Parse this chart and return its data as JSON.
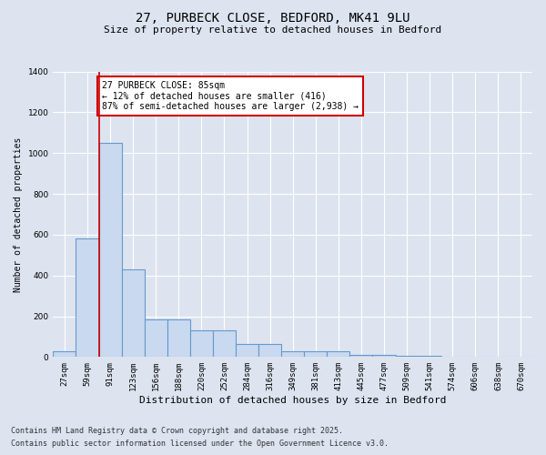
{
  "title_line1": "27, PURBECK CLOSE, BEDFORD, MK41 9LU",
  "title_line2": "Size of property relative to detached houses in Bedford",
  "xlabel": "Distribution of detached houses by size in Bedford",
  "ylabel": "Number of detached properties",
  "categories": [
    "27sqm",
    "59sqm",
    "91sqm",
    "123sqm",
    "156sqm",
    "188sqm",
    "220sqm",
    "252sqm",
    "284sqm",
    "316sqm",
    "349sqm",
    "381sqm",
    "413sqm",
    "445sqm",
    "477sqm",
    "509sqm",
    "541sqm",
    "574sqm",
    "606sqm",
    "638sqm",
    "670sqm"
  ],
  "values": [
    30,
    580,
    1050,
    430,
    185,
    185,
    130,
    130,
    65,
    65,
    30,
    30,
    30,
    10,
    10,
    5,
    5,
    2,
    0,
    0,
    2
  ],
  "bar_color": "#c9d9ef",
  "bar_edge_color": "#6699cc",
  "vline_x": 1.5,
  "vline_color": "#cc0000",
  "ylim": [
    0,
    1400
  ],
  "yticks": [
    0,
    200,
    400,
    600,
    800,
    1000,
    1200,
    1400
  ],
  "annotation_text": "27 PURBECK CLOSE: 85sqm\n← 12% of detached houses are smaller (416)\n87% of semi-detached houses are larger (2,938) →",
  "annotation_box_color": "#ffffff",
  "annotation_box_edge": "#cc0000",
  "footer_line1": "Contains HM Land Registry data © Crown copyright and database right 2025.",
  "footer_line2": "Contains public sector information licensed under the Open Government Licence v3.0.",
  "bg_color": "#dde4f0",
  "plot_bg_color": "#dde4f0",
  "grid_color": "#ffffff",
  "title_fontsize": 10,
  "subtitle_fontsize": 8,
  "xlabel_fontsize": 8,
  "ylabel_fontsize": 7,
  "tick_fontsize": 6.5,
  "footer_fontsize": 6,
  "ann_fontsize": 7
}
